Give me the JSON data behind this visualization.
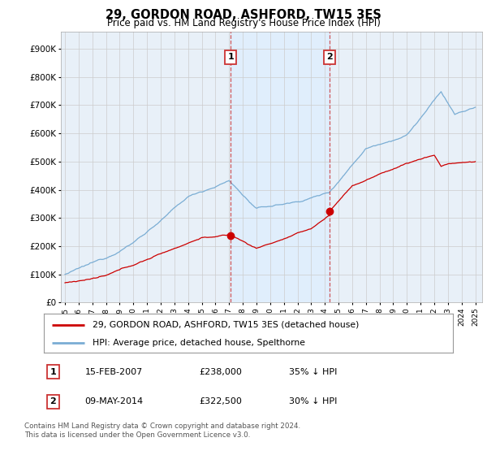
{
  "title": "29, GORDON ROAD, ASHFORD, TW15 3ES",
  "subtitle": "Price paid vs. HM Land Registry's House Price Index (HPI)",
  "yticks": [
    0,
    100000,
    200000,
    300000,
    400000,
    500000,
    600000,
    700000,
    800000,
    900000
  ],
  "ytick_labels": [
    "£0",
    "£100K",
    "£200K",
    "£300K",
    "£400K",
    "£500K",
    "£600K",
    "£700K",
    "£800K",
    "£900K"
  ],
  "ylim": [
    0,
    960000
  ],
  "xlim_start": 1994.7,
  "xlim_end": 2025.5,
  "xtick_years": [
    1995,
    1996,
    1997,
    1998,
    1999,
    2000,
    2001,
    2002,
    2003,
    2004,
    2005,
    2006,
    2007,
    2008,
    2009,
    2010,
    2011,
    2012,
    2013,
    2014,
    2015,
    2016,
    2017,
    2018,
    2019,
    2020,
    2021,
    2022,
    2023,
    2024,
    2025
  ],
  "hpi_color": "#7aadd4",
  "hpi_fill_color": "#ddeeff",
  "price_color": "#cc0000",
  "marker1_x": 2007.12,
  "marker1_y_price": 238000,
  "marker2_x": 2014.36,
  "marker2_y_price": 322500,
  "legend_entries": [
    {
      "label": "29, GORDON ROAD, ASHFORD, TW15 3ES (detached house)",
      "color": "#cc0000"
    },
    {
      "label": "HPI: Average price, detached house, Spelthorne",
      "color": "#7aadd4"
    }
  ],
  "table_rows": [
    {
      "num": "1",
      "date": "15-FEB-2007",
      "price": "£238,000",
      "hpi": "35% ↓ HPI"
    },
    {
      "num": "2",
      "date": "09-MAY-2014",
      "price": "£322,500",
      "hpi": "30% ↓ HPI"
    }
  ],
  "footer": "Contains HM Land Registry data © Crown copyright and database right 2024.\nThis data is licensed under the Open Government Licence v3.0.",
  "background_color": "#ffffff",
  "grid_color": "#cccccc",
  "plot_bg": "#e8f0f8"
}
